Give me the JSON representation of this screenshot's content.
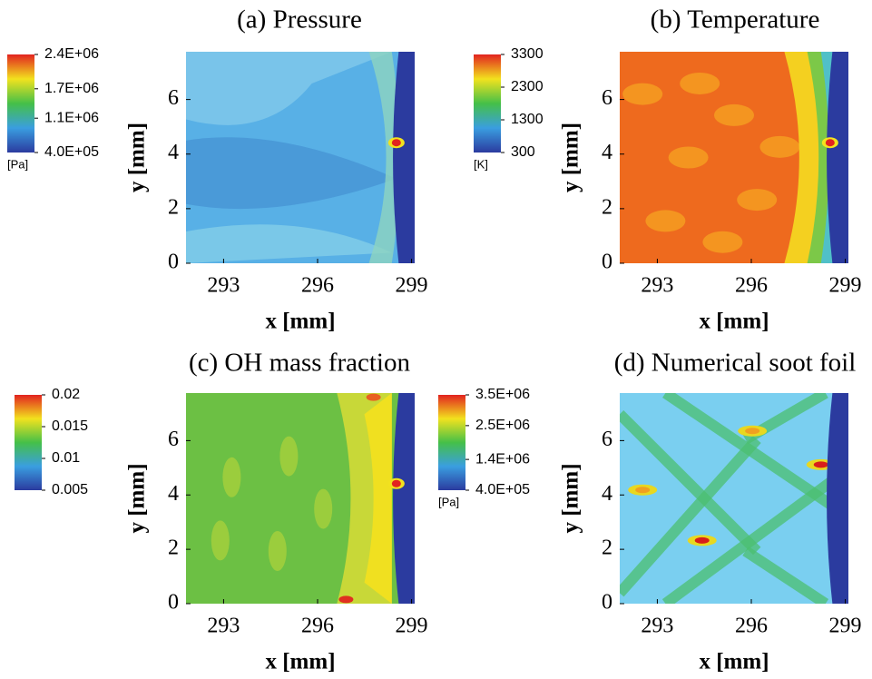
{
  "chart_data": [
    {
      "type": "contour",
      "title": "(a) Pressure",
      "x_label": "x [mm]",
      "y_label": "y [mm]",
      "xlim": [
        291.8,
        299.1
      ],
      "xticks": [
        293,
        296,
        299
      ],
      "ylim": [
        0,
        7.75
      ],
      "yticks": [
        0,
        2,
        4,
        6
      ],
      "colormap": [
        "#2b3b9f",
        "#3a9ee0",
        "#45c048",
        "#f2e21e",
        "#e2231f"
      ],
      "colorbar": {
        "unit": "[Pa]",
        "lim": [
          400000,
          2400000
        ],
        "ticks": [
          {
            "value": 2400000,
            "label": "2.4E+06"
          },
          {
            "value": 1700000,
            "label": "1.7E+06"
          },
          {
            "value": 1100000,
            "label": "1.1E+06"
          },
          {
            "value": 400000,
            "label": "4.0E+05"
          }
        ]
      }
    },
    {
      "type": "contour",
      "title": "(b) Temperature",
      "x_label": "x [mm]",
      "y_label": "y [mm]",
      "xlim": [
        291.8,
        299.1
      ],
      "xticks": [
        293,
        296,
        299
      ],
      "ylim": [
        0,
        7.75
      ],
      "yticks": [
        0,
        2,
        4,
        6
      ],
      "colormap": [
        "#2b3b9f",
        "#3a9ee0",
        "#45c048",
        "#f2e21e",
        "#e2231f"
      ],
      "colorbar": {
        "unit": "[K]",
        "lim": [
          300,
          3300
        ],
        "ticks": [
          3300,
          2300,
          1300,
          300
        ]
      }
    },
    {
      "type": "contour",
      "title": "(c) OH mass fraction",
      "x_label": "x [mm]",
      "y_label": "y [mm]",
      "xlim": [
        291.8,
        299.1
      ],
      "xticks": [
        293,
        296,
        299
      ],
      "ylim": [
        0,
        7.75
      ],
      "yticks": [
        0,
        2,
        4,
        6
      ],
      "colormap": [
        "#2b3b9f",
        "#3a9ee0",
        "#45c048",
        "#f2e21e",
        "#e2231f"
      ],
      "colorbar": {
        "lim": [
          0.005,
          0.02
        ],
        "ticks": [
          0.02,
          0.015,
          0.01,
          0.005
        ]
      }
    },
    {
      "type": "contour",
      "title": "(d) Numerical soot foil",
      "x_label": "x [mm]",
      "y_label": "y [mm]",
      "xlim": [
        291.8,
        299.1
      ],
      "xticks": [
        293,
        296,
        299
      ],
      "ylim": [
        0,
        7.75
      ],
      "yticks": [
        0,
        2,
        4,
        6
      ],
      "colormap": [
        "#2b3b9f",
        "#3a9ee0",
        "#45c048",
        "#f2e21e",
        "#e2231f"
      ],
      "colorbar": {
        "unit": "[Pa]",
        "lim": [
          400000,
          3500000
        ],
        "ticks": [
          {
            "value": 3500000,
            "label": "3.5E+06"
          },
          {
            "value": 2500000,
            "label": "2.5E+06"
          },
          {
            "value": 1400000,
            "label": "1.4E+06"
          },
          {
            "value": 400000,
            "label": "4.0E+05"
          }
        ]
      }
    }
  ]
}
